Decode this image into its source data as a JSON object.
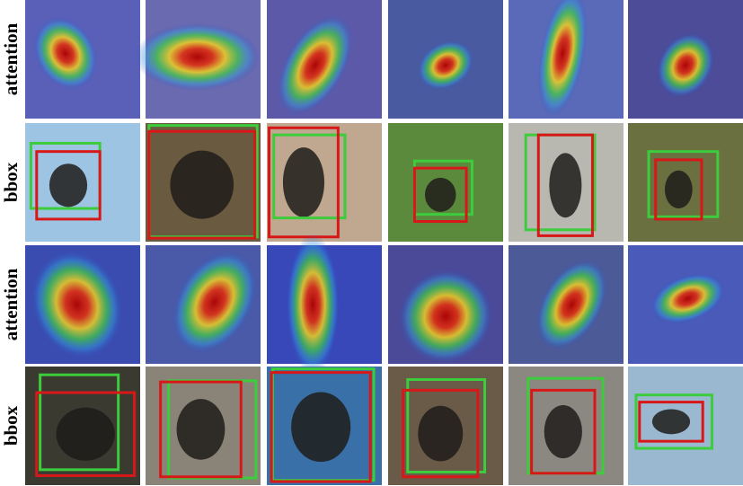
{
  "row_labels": [
    "attention",
    "bbox",
    "attention",
    "bbox"
  ]
}
